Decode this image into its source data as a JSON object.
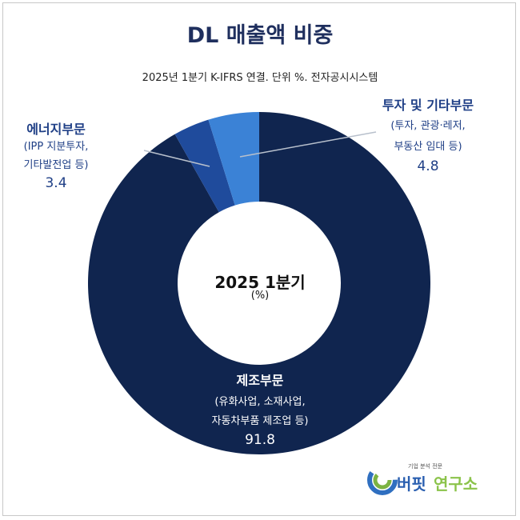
{
  "title": "DL 매출액 비중",
  "subtitle": "2025년 1분기 K-IFRS 연결. 단위 %. 전자공시시스템",
  "center": {
    "line1": "2025 1분기",
    "line2": "(%)"
  },
  "logo": {
    "tagline": "기업 분석 전문",
    "name_part1": "버핏",
    "name_part2": "연구소"
  },
  "chart_data": {
    "type": "pie",
    "donut": true,
    "title": "DL 매출액 비중",
    "subtitle": "2025년 1분기 K-IFRS 연결. 단위 %. 전자공시시스템",
    "slices": [
      {
        "name": "제조부문",
        "detail1": "(유화사업, 소재사업,",
        "detail2": "자동차부품 제조업 등)",
        "value": 91.8,
        "value_label": "91.8",
        "color": "#10254f"
      },
      {
        "name": "에너지부문",
        "detail1": "(IPP 지분투자,",
        "detail2": "기타발전업 등)",
        "value": 3.4,
        "value_label": "3.4",
        "color": "#1f4b9c"
      },
      {
        "name": "투자 및 기타부문",
        "detail1": "(투자, 관광·레저,",
        "detail2": "부동산 임대 등)",
        "value": 4.8,
        "value_label": "4.8",
        "color": "#3b82d6"
      }
    ]
  }
}
